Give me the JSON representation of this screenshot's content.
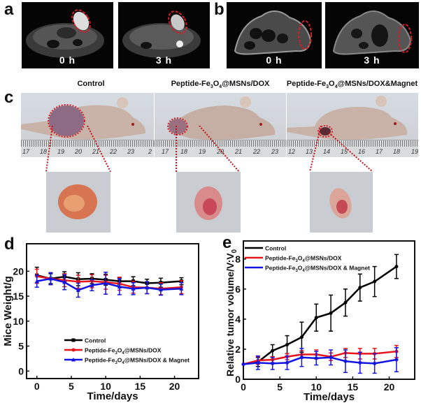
{
  "panels": {
    "a": {
      "label": "a",
      "images": [
        {
          "time": "0 h"
        },
        {
          "time": "3 h"
        }
      ]
    },
    "b": {
      "label": "b",
      "images": [
        {
          "time": "0 h"
        },
        {
          "time": "3 h"
        }
      ]
    },
    "c": {
      "label": "c",
      "groups": [
        {
          "title": "Control",
          "ruler": [
            "17",
            "18",
            "19",
            "20",
            "21",
            "22",
            "23",
            "2"
          ]
        },
        {
          "title_parts": [
            "Peptide-Fe",
            "3",
            "O",
            "4",
            "@MSNs/DOX"
          ],
          "ruler": [
            "17",
            "18",
            "19",
            "20",
            "21",
            "22",
            "23"
          ]
        },
        {
          "title_parts": [
            "Peptide-Fe",
            "3",
            "O",
            "4",
            "@MSNs/DOX&Magnet"
          ],
          "ruler": [
            "12",
            "13",
            "14",
            "15",
            "16",
            "17",
            "18",
            "19"
          ]
        }
      ]
    },
    "d": {
      "label": "d"
    },
    "e": {
      "label": "e"
    }
  },
  "colors": {
    "control": "#000000",
    "drug": "#e8141b",
    "magnet": "#1414e0",
    "tumor_outline": "#d0202a"
  },
  "chart_data": [
    {
      "id": "d",
      "type": "line",
      "xlabel": "Time/days",
      "ylabel": "Mice Weight/g",
      "xlim": [
        -1.5,
        23.5
      ],
      "ylim": [
        -1.5,
        25.5
      ],
      "xticks": [
        0,
        5,
        10,
        15,
        20
      ],
      "yticks": [
        0,
        5,
        10,
        15,
        20
      ],
      "legend_position": "bottom-center",
      "x": [
        0,
        2,
        4,
        6,
        8,
        10,
        12,
        14,
        16,
        18,
        21
      ],
      "series": [
        {
          "name": "Control",
          "color_key": "control",
          "marker": "square",
          "values": [
            19.2,
            18.5,
            18.9,
            18.4,
            18.5,
            18.3,
            18.0,
            18.0,
            17.6,
            17.7,
            18.0
          ],
          "errors": [
            1.6,
            1.0,
            1.0,
            1.3,
            1.0,
            1.1,
            0.7,
            0.9,
            0.8,
            0.9,
            0.7
          ]
        },
        {
          "name_parts": [
            "Peptide-Fe",
            "3",
            "O",
            "4",
            "@MSNs/DOX"
          ],
          "color_key": "drug",
          "marker": "circle",
          "values": [
            19.0,
            18.5,
            18.2,
            17.9,
            18.0,
            17.8,
            17.5,
            16.8,
            16.7,
            16.5,
            16.8
          ],
          "errors": [
            1.4,
            1.2,
            1.3,
            1.3,
            1.3,
            1.4,
            1.3,
            1.2,
            1.2,
            1.2,
            1.3
          ]
        },
        {
          "name_parts": [
            "Peptide-Fe",
            "3",
            "O",
            "4",
            "@MSNs/DOX & Magnet"
          ],
          "color_key": "magnet",
          "marker": "triangle",
          "values": [
            18.0,
            18.5,
            17.8,
            16.2,
            17.2,
            17.6,
            16.9,
            16.5,
            16.7,
            16.3,
            16.5
          ],
          "errors": [
            1.2,
            1.2,
            1.5,
            1.4,
            1.1,
            2.2,
            1.6,
            1.2,
            1.2,
            1.1,
            1.2
          ]
        }
      ]
    },
    {
      "id": "e",
      "type": "line",
      "xlabel": "Time/days",
      "ylabel_parts": [
        "Relative tumor volume/V:V",
        "0"
      ],
      "xlim": [
        0,
        23.5
      ],
      "ylim": [
        0,
        9.2
      ],
      "xticks": [
        0,
        5,
        10,
        15,
        20
      ],
      "yticks": [
        0,
        2,
        4,
        6,
        8
      ],
      "legend_position": "top-left",
      "x": [
        0,
        2,
        4,
        6,
        8,
        10,
        12,
        14,
        16,
        18,
        21
      ],
      "series": [
        {
          "name": "Control",
          "color_key": "control",
          "values": [
            1.0,
            1.15,
            1.9,
            2.3,
            2.8,
            4.1,
            4.4,
            5.1,
            6.1,
            6.5,
            7.5
          ],
          "errors": [
            0.0,
            0.3,
            0.4,
            0.6,
            1.0,
            0.9,
            1.2,
            0.9,
            0.9,
            1.0,
            0.8
          ]
        },
        {
          "name_parts": [
            "Peptide-Fe",
            "3",
            "O",
            "4",
            "@MSNs/DOX"
          ],
          "color_key": "drug",
          "values": [
            1.0,
            1.25,
            1.3,
            1.5,
            1.65,
            1.65,
            1.5,
            1.75,
            1.7,
            1.7,
            1.85
          ],
          "errors": [
            0.0,
            0.25,
            0.2,
            0.2,
            0.25,
            0.3,
            0.25,
            0.3,
            0.35,
            0.35,
            0.4
          ]
        },
        {
          "name_parts": [
            "Peptide-Fe",
            "3",
            "O",
            "4",
            "@MSNs/DOX & Magnet"
          ],
          "color_key": "magnet",
          "values": [
            1.0,
            1.1,
            1.05,
            1.1,
            1.45,
            1.4,
            1.45,
            1.2,
            1.1,
            1.05,
            1.3
          ],
          "errors": [
            0.0,
            0.45,
            0.4,
            0.45,
            0.6,
            0.45,
            0.5,
            0.75,
            0.7,
            0.65,
            0.8
          ]
        }
      ]
    }
  ]
}
